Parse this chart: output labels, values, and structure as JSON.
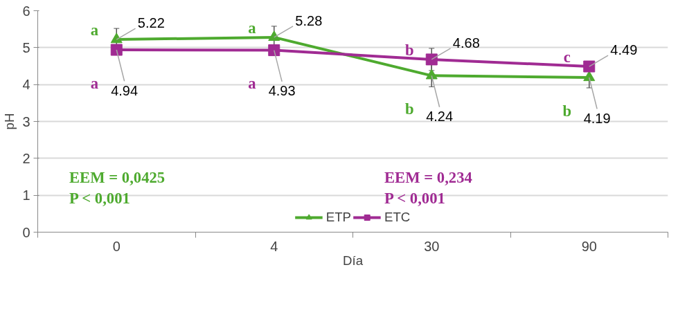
{
  "chart_data": {
    "type": "line",
    "xlabel": "Día",
    "ylabel": "pH",
    "categories": [
      "0",
      "4",
      "30",
      "90"
    ],
    "ylim": [
      0,
      6
    ],
    "yticks": [
      0,
      1,
      2,
      3,
      4,
      5,
      6
    ],
    "grid": "y",
    "legend": "bottom",
    "data_labels": true,
    "series": [
      {
        "name": "ETP",
        "color": "#4eaa2f",
        "marker": "triangle",
        "values": [
          5.22,
          5.28,
          4.24,
          4.19
        ],
        "errors": [
          0.3,
          0.3,
          0.3,
          0.28
        ]
      },
      {
        "name": "ETC",
        "color": "#a02b93",
        "marker": "square",
        "values": [
          4.94,
          4.93,
          4.68,
          4.49
        ],
        "errors": [
          null,
          null,
          0.3,
          null
        ]
      }
    ],
    "annotations": [
      "EEM = 0,0425\nP < 0,001",
      "EEM = 0,234\nP < 0,001",
      {
        "text": "a",
        "x": "0",
        "y": 5.22
      },
      {
        "text": "a",
        "x": "4",
        "y": 5.28
      },
      {
        "text": "b",
        "x": "30",
        "y": 4.24
      },
      {
        "text": "b",
        "x": "90",
        "y": 4.19
      },
      {
        "text": "a",
        "x": "0",
        "y": 4.94
      },
      {
        "text": "a",
        "x": "4",
        "y": 4.93
      },
      {
        "text": "b",
        "x": "30",
        "y": 4.68
      },
      {
        "text": "c",
        "x": "90",
        "y": 4.49
      }
    ]
  }
}
